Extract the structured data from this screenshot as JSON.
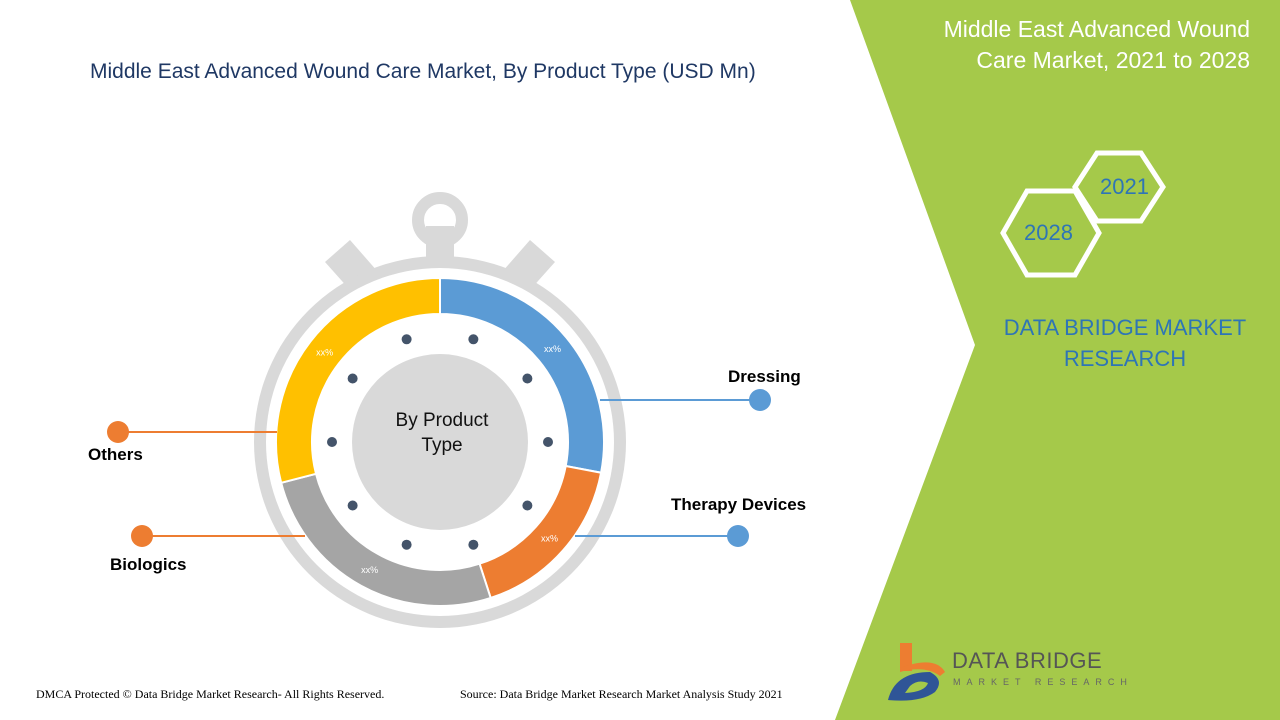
{
  "header": {
    "title": "Middle East Advanced Wound Care Market, By Product Type (USD Mn)"
  },
  "side_panel": {
    "title": "Middle East Advanced Wound Care Market, 2021 to 2028",
    "year_start": "2021",
    "year_end": "2028",
    "brand": "DATA BRIDGE MARKET RESEARCH",
    "color": "#a5c94a"
  },
  "logo": {
    "name": "DATA BRIDGE",
    "sub": "MARKET RESEARCH"
  },
  "footer": {
    "copyright": "DMCA Protected © Data Bridge Market Research- All Rights Reserved.",
    "source": "Source: Data Bridge Market Research Market Analysis Study 2021"
  },
  "chart_data": {
    "type": "pie",
    "center_label": "By Product Type",
    "categories": [
      "Dressing",
      "Therapy Devices",
      "Biologics",
      "Others"
    ],
    "values": [
      28,
      17,
      26,
      29
    ],
    "data_labels": [
      "xx%",
      "xx%",
      "xx%",
      "xx%"
    ],
    "colors": [
      "#5b9bd5",
      "#ed7d31",
      "#a5a5a5",
      "#ffc000"
    ],
    "label_colors": [
      "#2e75b6",
      "#2e75b6",
      "#ed7d31",
      "#ed7d31"
    ]
  }
}
